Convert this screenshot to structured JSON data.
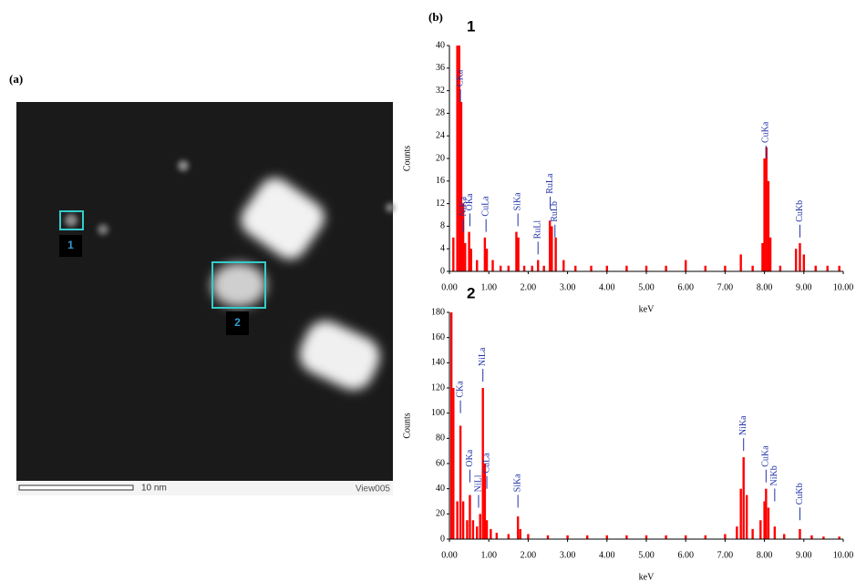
{
  "panel_a": {
    "label": "(a)",
    "regions": [
      "1",
      "2"
    ],
    "scale_bar": "10 nm",
    "view": "View005"
  },
  "panel_b": {
    "label": "(b)"
  },
  "chart_data": [
    {
      "type": "bar",
      "title": "1",
      "x_label": "keV",
      "y_label": "Counts",
      "color": "#ff0000",
      "xlim": [
        0,
        10
      ],
      "ylim": [
        0,
        40
      ],
      "xticks": [
        {
          "value": 0,
          "label": "0.00"
        },
        {
          "value": 1,
          "label": "1.00"
        },
        {
          "value": 2,
          "label": "2.00"
        },
        {
          "value": 3,
          "label": "3.00"
        },
        {
          "value": 4,
          "label": "4.00"
        },
        {
          "value": 5,
          "label": "5.00"
        },
        {
          "value": 6,
          "label": "6.00"
        },
        {
          "value": 7,
          "label": "7.00"
        },
        {
          "value": 8,
          "label": "8.00"
        },
        {
          "value": 9,
          "label": "9.00"
        },
        {
          "value": 10,
          "label": "10.00"
        }
      ],
      "yticks": [
        0,
        4,
        8,
        12,
        16,
        20,
        24,
        28,
        32,
        36,
        40
      ],
      "x": [
        0.1,
        0.2,
        0.25,
        0.3,
        0.35,
        0.4,
        0.5,
        0.55,
        0.7,
        0.9,
        0.95,
        1.1,
        1.3,
        1.5,
        1.7,
        1.75,
        1.9,
        2.1,
        2.25,
        2.4,
        2.55,
        2.6,
        2.7,
        2.9,
        3.2,
        3.6,
        4.0,
        4.5,
        5.0,
        5.5,
        6.0,
        6.5,
        7.0,
        7.4,
        7.7,
        7.95,
        8.0,
        8.05,
        8.1,
        8.15,
        8.4,
        8.8,
        8.9,
        9.0,
        9.3,
        9.6,
        9.9
      ],
      "values": [
        6,
        40,
        40,
        30,
        12,
        5,
        7,
        4,
        2,
        6,
        4,
        2,
        1,
        1,
        7,
        6,
        1,
        1,
        2,
        1,
        9,
        8,
        6,
        2,
        1,
        1,
        1,
        1,
        1,
        1,
        2,
        1,
        1,
        3,
        1,
        5,
        20,
        22,
        16,
        6,
        1,
        4,
        5,
        3,
        1,
        1,
        1
      ],
      "annotations": [
        {
          "label": "CKa",
          "x": 0.28,
          "y": 30
        },
        {
          "label": "NiKa",
          "x": 0.36,
          "y": 7
        },
        {
          "label": "OKa",
          "x": 0.52,
          "y": 8
        },
        {
          "label": "CuLa",
          "x": 0.93,
          "y": 7
        },
        {
          "label": "SiKa",
          "x": 1.74,
          "y": 8
        },
        {
          "label": "RuLl",
          "x": 2.25,
          "y": 3
        },
        {
          "label": "RuLa",
          "x": 2.56,
          "y": 11
        },
        {
          "label": "RuLb",
          "x": 2.68,
          "y": 6
        },
        {
          "label": "CuKa",
          "x": 8.04,
          "y": 20
        },
        {
          "label": "CuKb",
          "x": 8.9,
          "y": 6
        }
      ]
    },
    {
      "type": "bar",
      "title": "2",
      "x_label": "keV",
      "y_label": "Counts",
      "color": "#ff0000",
      "xlim": [
        0,
        10
      ],
      "ylim": [
        0,
        180
      ],
      "xticks": [
        {
          "value": 0,
          "label": "0.00"
        },
        {
          "value": 1,
          "label": "1.00"
        },
        {
          "value": 2,
          "label": "2.00"
        },
        {
          "value": 3,
          "label": "3.00"
        },
        {
          "value": 4,
          "label": "4.00"
        },
        {
          "value": 5,
          "label": "5.00"
        },
        {
          "value": 6,
          "label": "6.00"
        },
        {
          "value": 7,
          "label": "7.00"
        },
        {
          "value": 8,
          "label": "8.00"
        },
        {
          "value": 9,
          "label": "9.00"
        },
        {
          "value": 10,
          "label": "10.00"
        }
      ],
      "yticks": [
        0,
        20,
        40,
        60,
        80,
        100,
        120,
        140,
        160,
        180
      ],
      "x": [
        0.05,
        0.1,
        0.2,
        0.28,
        0.35,
        0.45,
        0.52,
        0.6,
        0.7,
        0.78,
        0.85,
        0.9,
        0.95,
        1.05,
        1.2,
        1.5,
        1.74,
        1.8,
        2.0,
        2.5,
        3.0,
        3.5,
        4.0,
        4.5,
        5.0,
        5.5,
        6.0,
        6.5,
        7.0,
        7.3,
        7.4,
        7.47,
        7.55,
        7.7,
        7.9,
        8.0,
        8.04,
        8.1,
        8.26,
        8.5,
        8.9,
        9.2,
        9.5,
        9.9
      ],
      "values": [
        180,
        120,
        30,
        90,
        30,
        15,
        35,
        15,
        10,
        20,
        120,
        60,
        15,
        8,
        5,
        4,
        18,
        8,
        4,
        3,
        3,
        3,
        3,
        3,
        3,
        3,
        3,
        3,
        4,
        10,
        40,
        65,
        35,
        8,
        15,
        30,
        40,
        25,
        10,
        4,
        8,
        3,
        2,
        2
      ],
      "annotations": [
        {
          "label": "CKa",
          "x": 0.28,
          "y": 100
        },
        {
          "label": "OKa",
          "x": 0.52,
          "y": 45
        },
        {
          "label": "NiLl",
          "x": 0.74,
          "y": 25
        },
        {
          "label": "NiLa",
          "x": 0.85,
          "y": 125
        },
        {
          "label": "CuLa",
          "x": 0.95,
          "y": 40
        },
        {
          "label": "SiKa",
          "x": 1.74,
          "y": 25
        },
        {
          "label": "NiKa",
          "x": 7.47,
          "y": 70
        },
        {
          "label": "CuKa",
          "x": 8.04,
          "y": 45
        },
        {
          "label": "NiKb",
          "x": 8.26,
          "y": 30
        },
        {
          "label": "CuKb",
          "x": 8.9,
          "y": 15
        }
      ]
    }
  ]
}
